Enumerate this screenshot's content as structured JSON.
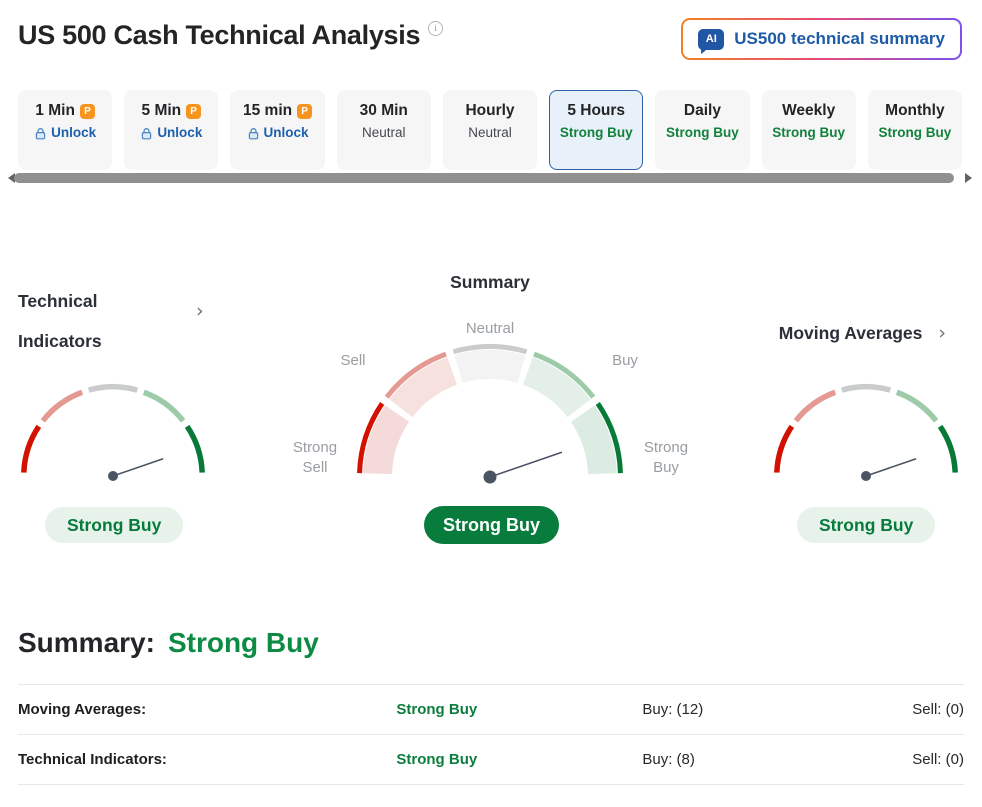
{
  "header": {
    "title": "US 500 Cash Technical Analysis",
    "info_icon_glyph": "i",
    "ai_button": {
      "badge": "AI",
      "label": "US500 technical summary"
    }
  },
  "timeframes": [
    {
      "label": "1 Min",
      "signal": "Unlock",
      "locked": true
    },
    {
      "label": "5 Min",
      "signal": "Unlock",
      "locked": true
    },
    {
      "label": "15 min",
      "signal": "Unlock",
      "locked": true
    },
    {
      "label": "30 Min",
      "signal": "Neutral"
    },
    {
      "label": "Hourly",
      "signal": "Neutral"
    },
    {
      "label": "5 Hours",
      "signal": "Strong Buy",
      "selected": true
    },
    {
      "label": "Daily",
      "signal": "Strong Buy"
    },
    {
      "label": "Weekly",
      "signal": "Strong Buy"
    },
    {
      "label": "Monthly",
      "signal": "Strong Buy"
    }
  ],
  "gauges": {
    "scale_labels": {
      "strong_sell": "Strong Sell",
      "sell": "Sell",
      "neutral": "Neutral",
      "buy": "Buy",
      "strong_buy": "Strong Buy"
    },
    "left": {
      "title": "Technical Indicators",
      "value": "Strong Buy",
      "needle_deg": 19
    },
    "center": {
      "title": "Summary",
      "value": "Strong Buy",
      "needle_deg": 19
    },
    "right": {
      "title": "Moving Averages",
      "value": "Strong Buy",
      "needle_deg": 19
    }
  },
  "summary_section": {
    "label": "Summary:",
    "value": "Strong Buy",
    "rows": [
      {
        "name": "Moving Averages:",
        "signal": "Strong Buy",
        "buy": "Buy: (12)",
        "sell": "Sell: (0)"
      },
      {
        "name": "Technical Indicators:",
        "signal": "Strong Buy",
        "buy": "Buy: (8)",
        "sell": "Sell: (0)"
      }
    ]
  },
  "colors": {
    "arc_strong_sell": "#d21100",
    "arc_sell": "#e49a92",
    "arc_neutral": "#c9cbcc",
    "arc_buy": "#9dcbaa",
    "arc_strong_buy": "#077a38",
    "band_strong_sell": "#f4dad8",
    "band_sell": "#f6e1df",
    "band_neutral": "#f2f3f2",
    "band_buy": "#e3efe7",
    "band_strong_buy": "#dcece2",
    "needle": "#4a5463",
    "signal_green": "#0c7d3e",
    "accent_blue": "#1d60ac",
    "selected_tab_border": "#2d62a8",
    "badge_light_bg": "#e7f2ea",
    "badge_dark_bg": "#087c3c"
  }
}
